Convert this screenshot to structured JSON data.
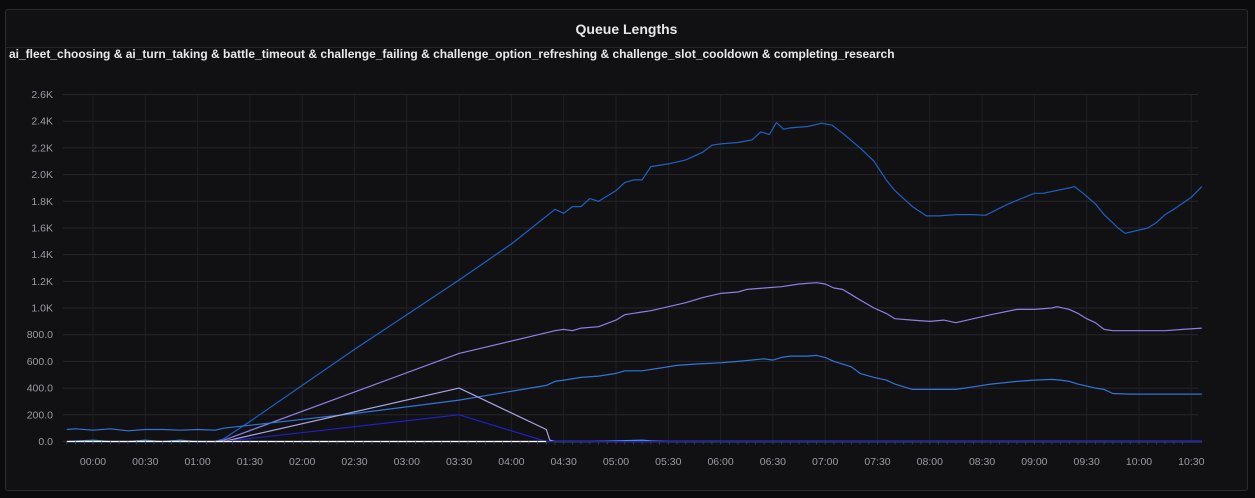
{
  "panel": {
    "title": "Queue Lengths",
    "series_caption": "ai_fleet_choosing & ai_turn_taking & battle_timeout & challenge_failing & challenge_option_refreshing & challenge_slot_cooldown & completing_research"
  },
  "chart_data": {
    "type": "line",
    "title": "Queue Lengths",
    "xlabel": "",
    "ylabel": "",
    "ylim": [
      0,
      2600
    ],
    "y_ticks": [
      "0.0",
      "200.0",
      "400.0",
      "600.0",
      "800.0",
      "1.0K",
      "1.2K",
      "1.4K",
      "1.6K",
      "1.8K",
      "2.0K",
      "2.2K",
      "2.4K",
      "2.6K"
    ],
    "x_ticks": [
      "00:00",
      "00:30",
      "01:00",
      "01:30",
      "02:00",
      "02:30",
      "03:00",
      "03:30",
      "04:00",
      "04:30",
      "05:00",
      "05:30",
      "06:00",
      "06:30",
      "07:00",
      "07:30",
      "08:00",
      "08:30",
      "09:00",
      "09:30",
      "10:00",
      "10:30"
    ],
    "grid": true,
    "series": [
      {
        "color": "#1f60c4",
        "points": [
          [
            -15,
            0
          ],
          [
            0,
            0
          ],
          [
            60,
            0
          ],
          [
            70,
            0
          ],
          [
            75,
            20
          ],
          [
            90,
            150
          ],
          [
            120,
            420
          ],
          [
            150,
            690
          ],
          [
            180,
            950
          ],
          [
            210,
            1210
          ],
          [
            240,
            1480
          ],
          [
            265,
            1740
          ],
          [
            270,
            1710
          ],
          [
            275,
            1760
          ],
          [
            280,
            1760
          ],
          [
            285,
            1820
          ],
          [
            290,
            1800
          ],
          [
            300,
            1880
          ],
          [
            305,
            1940
          ],
          [
            310,
            1960
          ],
          [
            315,
            1960
          ],
          [
            320,
            2060
          ],
          [
            330,
            2080
          ],
          [
            340,
            2110
          ],
          [
            350,
            2170
          ],
          [
            355,
            2220
          ],
          [
            360,
            2230
          ],
          [
            370,
            2240
          ],
          [
            378,
            2260
          ],
          [
            383,
            2320
          ],
          [
            388,
            2300
          ],
          [
            392,
            2390
          ],
          [
            396,
            2340
          ],
          [
            400,
            2350
          ],
          [
            410,
            2360
          ],
          [
            418,
            2385
          ],
          [
            424,
            2370
          ],
          [
            430,
            2310
          ],
          [
            440,
            2200
          ],
          [
            448,
            2100
          ],
          [
            455,
            1960
          ],
          [
            460,
            1880
          ],
          [
            470,
            1760
          ],
          [
            478,
            1690
          ],
          [
            485,
            1690
          ],
          [
            495,
            1700
          ],
          [
            505,
            1700
          ],
          [
            512,
            1695
          ],
          [
            525,
            1780
          ],
          [
            540,
            1860
          ],
          [
            545,
            1860
          ],
          [
            560,
            1900
          ],
          [
            563,
            1910
          ],
          [
            568,
            1860
          ],
          [
            575,
            1780
          ],
          [
            580,
            1700
          ],
          [
            588,
            1600
          ],
          [
            592,
            1560
          ],
          [
            605,
            1600
          ],
          [
            610,
            1640
          ],
          [
            615,
            1700
          ],
          [
            620,
            1740
          ],
          [
            630,
            1830
          ],
          [
            636,
            1910
          ]
        ]
      },
      {
        "color": "#8f7fe3",
        "points": [
          [
            70,
            0
          ],
          [
            75,
            10
          ],
          [
            210,
            660
          ],
          [
            265,
            830
          ],
          [
            270,
            840
          ],
          [
            275,
            830
          ],
          [
            280,
            850
          ],
          [
            290,
            860
          ],
          [
            300,
            910
          ],
          [
            305,
            950
          ],
          [
            315,
            970
          ],
          [
            320,
            980
          ],
          [
            330,
            1010
          ],
          [
            340,
            1040
          ],
          [
            350,
            1080
          ],
          [
            360,
            1110
          ],
          [
            370,
            1120
          ],
          [
            375,
            1140
          ],
          [
            385,
            1150
          ],
          [
            395,
            1160
          ],
          [
            405,
            1180
          ],
          [
            415,
            1190
          ],
          [
            420,
            1180
          ],
          [
            425,
            1150
          ],
          [
            430,
            1140
          ],
          [
            435,
            1100
          ],
          [
            440,
            1060
          ],
          [
            448,
            1000
          ],
          [
            455,
            960
          ],
          [
            460,
            920
          ],
          [
            470,
            910
          ],
          [
            480,
            900
          ],
          [
            488,
            910
          ],
          [
            495,
            890
          ],
          [
            505,
            920
          ],
          [
            515,
            950
          ],
          [
            530,
            990
          ],
          [
            540,
            990
          ],
          [
            550,
            1000
          ],
          [
            553,
            1010
          ],
          [
            560,
            990
          ],
          [
            565,
            960
          ],
          [
            570,
            920
          ],
          [
            575,
            890
          ],
          [
            580,
            840
          ],
          [
            585,
            830
          ],
          [
            595,
            830
          ],
          [
            605,
            830
          ],
          [
            615,
            830
          ],
          [
            625,
            840
          ],
          [
            636,
            850
          ]
        ]
      },
      {
        "color": "#3274d9",
        "points": [
          [
            -15,
            90
          ],
          [
            -10,
            95
          ],
          [
            0,
            85
          ],
          [
            10,
            95
          ],
          [
            20,
            80
          ],
          [
            30,
            90
          ],
          [
            40,
            90
          ],
          [
            50,
            85
          ],
          [
            60,
            90
          ],
          [
            70,
            85
          ],
          [
            75,
            100
          ],
          [
            150,
            210
          ],
          [
            210,
            310
          ],
          [
            260,
            420
          ],
          [
            265,
            450
          ],
          [
            270,
            460
          ],
          [
            280,
            480
          ],
          [
            290,
            490
          ],
          [
            300,
            510
          ],
          [
            305,
            530
          ],
          [
            315,
            530
          ],
          [
            325,
            550
          ],
          [
            335,
            570
          ],
          [
            345,
            580
          ],
          [
            360,
            590
          ],
          [
            370,
            600
          ],
          [
            385,
            620
          ],
          [
            390,
            610
          ],
          [
            395,
            630
          ],
          [
            400,
            640
          ],
          [
            410,
            640
          ],
          [
            415,
            645
          ],
          [
            420,
            630
          ],
          [
            425,
            600
          ],
          [
            430,
            580
          ],
          [
            435,
            560
          ],
          [
            440,
            510
          ],
          [
            448,
            480
          ],
          [
            455,
            460
          ],
          [
            460,
            430
          ],
          [
            470,
            390
          ],
          [
            480,
            390
          ],
          [
            488,
            390
          ],
          [
            495,
            390
          ],
          [
            505,
            410
          ],
          [
            515,
            430
          ],
          [
            530,
            450
          ],
          [
            540,
            460
          ],
          [
            550,
            465
          ],
          [
            555,
            460
          ],
          [
            560,
            450
          ],
          [
            565,
            430
          ],
          [
            575,
            400
          ],
          [
            580,
            390
          ],
          [
            585,
            360
          ],
          [
            595,
            355
          ],
          [
            605,
            355
          ],
          [
            615,
            355
          ],
          [
            636,
            355
          ]
        ]
      },
      {
        "color": "#a8a4df",
        "points": [
          [
            75,
            0
          ],
          [
            210,
            400
          ],
          [
            260,
            90
          ],
          [
            262,
            10
          ],
          [
            265,
            0
          ],
          [
            636,
            0
          ]
        ]
      },
      {
        "color": "#5794f2",
        "points": [
          [
            -15,
            0
          ],
          [
            0,
            10
          ],
          [
            10,
            0
          ],
          [
            20,
            0
          ],
          [
            30,
            10
          ],
          [
            40,
            0
          ],
          [
            50,
            10
          ],
          [
            60,
            0
          ],
          [
            70,
            0
          ],
          [
            210,
            0
          ],
          [
            263,
            0
          ],
          [
            285,
            0
          ],
          [
            315,
            10
          ],
          [
            320,
            5
          ],
          [
            330,
            0
          ],
          [
            380,
            0
          ],
          [
            450,
            0
          ],
          [
            500,
            0
          ],
          [
            560,
            0
          ],
          [
            620,
            0
          ],
          [
            636,
            0
          ]
        ]
      },
      {
        "color": "#2020c8",
        "points": [
          [
            -15,
            0
          ],
          [
            75,
            0
          ],
          [
            210,
            200
          ],
          [
            260,
            0
          ],
          [
            636,
            0
          ]
        ]
      },
      {
        "color": "#ffffff",
        "points": [
          [
            -15,
            0
          ],
          [
            260,
            0
          ]
        ]
      }
    ]
  }
}
